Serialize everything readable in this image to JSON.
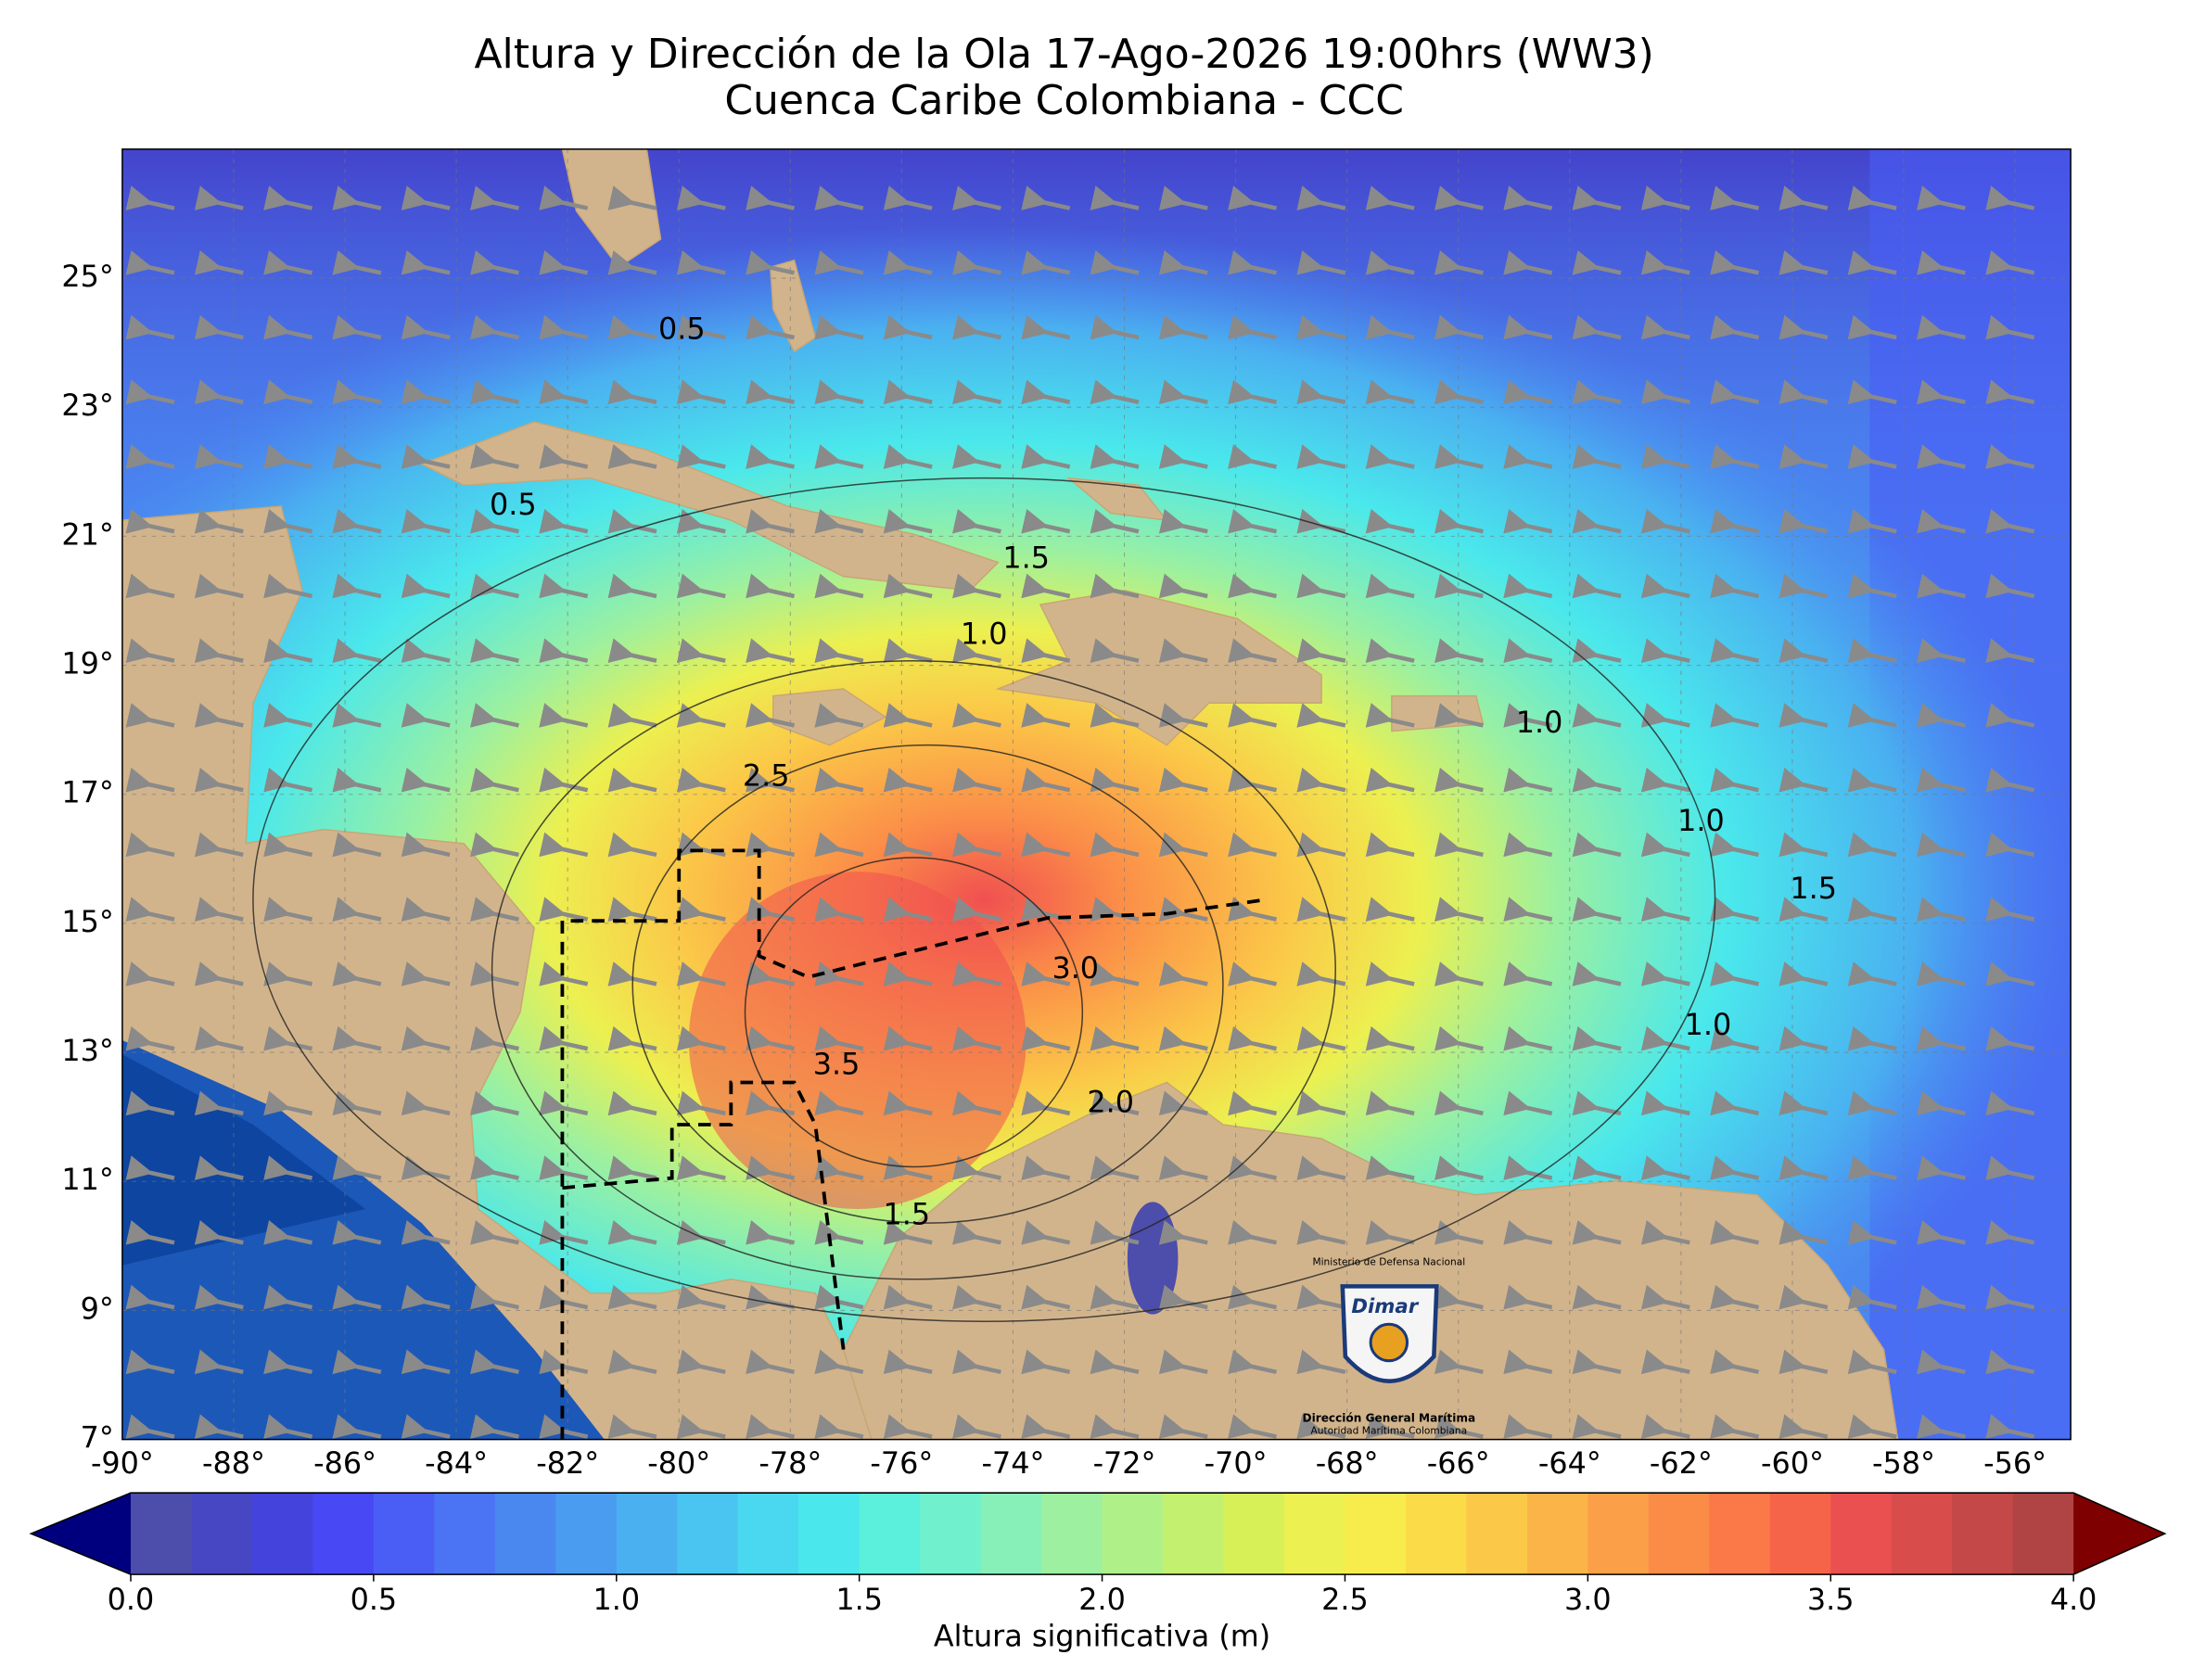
{
  "title": "Altura y Dirección de la Ola 17-Ago-2026 19:00hrs (WW3)",
  "subtitle": "Cuenca Caribe Colombiana - CCC",
  "map": {
    "lon_range": [
      -90,
      -55
    ],
    "lat_range": [
      7,
      27
    ],
    "lat_ticks": [
      {
        "value": 7,
        "label": "7°"
      },
      {
        "value": 9,
        "label": "9°"
      },
      {
        "value": 11,
        "label": "11°"
      },
      {
        "value": 13,
        "label": "13°"
      },
      {
        "value": 15,
        "label": "15°"
      },
      {
        "value": 17,
        "label": "17°"
      },
      {
        "value": 19,
        "label": "19°"
      },
      {
        "value": 21,
        "label": "21°"
      },
      {
        "value": 23,
        "label": "23°"
      },
      {
        "value": 25,
        "label": "25°"
      }
    ],
    "lon_ticks": [
      {
        "value": -90,
        "label": "-90°"
      },
      {
        "value": -88,
        "label": "-88°"
      },
      {
        "value": -86,
        "label": "-86°"
      },
      {
        "value": -84,
        "label": "-84°"
      },
      {
        "value": -82,
        "label": "-82°"
      },
      {
        "value": -80,
        "label": "-80°"
      },
      {
        "value": -78,
        "label": "-78°"
      },
      {
        "value": -76,
        "label": "-76°"
      },
      {
        "value": -74,
        "label": "-74°"
      },
      {
        "value": -72,
        "label": "-72°"
      },
      {
        "value": -70,
        "label": "-70°"
      },
      {
        "value": -68,
        "label": "-68°"
      },
      {
        "value": -66,
        "label": "-66°"
      },
      {
        "value": -64,
        "label": "-64°"
      },
      {
        "value": -62,
        "label": "-62°"
      },
      {
        "value": -60,
        "label": "-60°"
      },
      {
        "value": -58,
        "label": "-58°"
      },
      {
        "value": -56,
        "label": "-56°"
      }
    ],
    "contour_labels": [
      "0.5",
      "0.5",
      "1.5",
      "1.0",
      "1.0",
      "2.5",
      "3.0",
      "3.5",
      "2.0",
      "1.5",
      "1.0",
      "1.5",
      "1.0"
    ]
  },
  "logo": {
    "ministry": "Ministerio de Defensa Nacional",
    "brand": "Dimar",
    "name": "Dirección General Marítima",
    "tagline": "Autoridad Marítima Colombiana"
  },
  "colorbar": {
    "label": "Altura significativa (m)",
    "range": [
      0,
      4
    ],
    "ticks": [
      {
        "value": 0,
        "label": "0.0"
      },
      {
        "value": 0.5,
        "label": "0.5"
      },
      {
        "value": 1,
        "label": "1.0"
      },
      {
        "value": 1.5,
        "label": "1.5"
      },
      {
        "value": 2,
        "label": "2.0"
      },
      {
        "value": 2.5,
        "label": "2.5"
      },
      {
        "value": 3,
        "label": "3.0"
      },
      {
        "value": 3.5,
        "label": "3.5"
      },
      {
        "value": 4,
        "label": "4.0"
      }
    ],
    "under_color": "#00007f",
    "over_color": "#7f0000",
    "colors": [
      "#4d4dab",
      "#4747c4",
      "#4444dd",
      "#4848f5",
      "#4a5ef5",
      "#4a74f3",
      "#4a88f0",
      "#4a9cf0",
      "#4ab0f0",
      "#4ac4f0",
      "#4ad8f0",
      "#4ae8ec",
      "#5af0dc",
      "#70f0cc",
      "#86f0b8",
      "#9cf0a0",
      "#b0f088",
      "#c4f070",
      "#d8f058",
      "#ecf050",
      "#f8ec4c",
      "#fbdc48",
      "#fbc848",
      "#fbb448",
      "#fba048",
      "#fb8c48",
      "#fb7848",
      "#f56448",
      "#eb5050",
      "#d84c4c",
      "#c44848",
      "#b04444"
    ]
  }
}
